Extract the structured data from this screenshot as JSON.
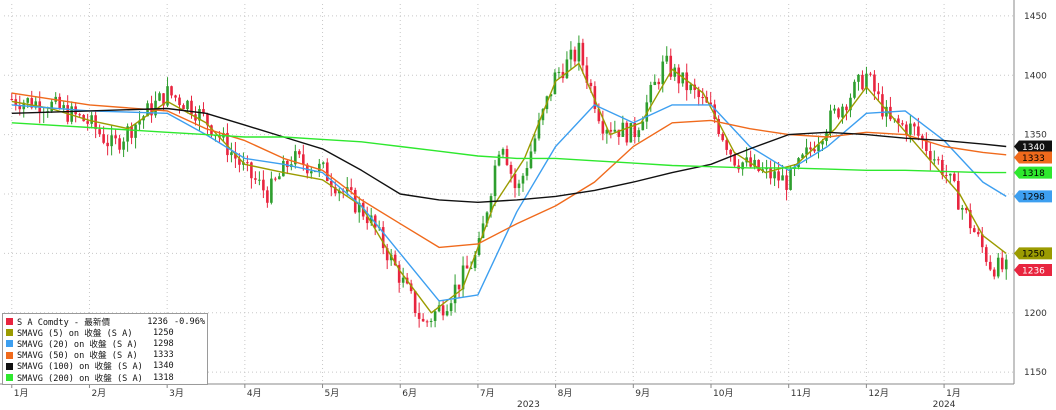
{
  "chart_data": {
    "type": "candlestick+line",
    "title": "",
    "xlabel": "",
    "ylabel": "",
    "ylim": [
      1140,
      1460
    ],
    "y_ticks": [
      1150,
      1200,
      1250,
      1300,
      1350,
      1400,
      1450
    ],
    "x_tick_labels": [
      "1月",
      "2月",
      "3月",
      "4月",
      "5月",
      "6月",
      "7月",
      "8月",
      "9月",
      "10月",
      "11月",
      "12月",
      "1月"
    ],
    "x_year_labels": [
      "2023",
      "2024"
    ],
    "grid": "vertical dotted, horizontal dotted",
    "legend_position": "bottom-left",
    "candles_up_color": "#2e9e2e",
    "candles_down_color": "#e8253f",
    "series": [
      {
        "name": "S A Comdty - 最新價",
        "last": "1236",
        "change": "-0.96%",
        "color": "#e8253f",
        "points": [
          [
            0,
            1380
          ],
          [
            0.5,
            1375
          ],
          [
            1,
            1360
          ],
          [
            1.3,
            1340
          ],
          [
            1.6,
            1360
          ],
          [
            2,
            1385
          ],
          [
            2.3,
            1375
          ],
          [
            2.6,
            1355
          ],
          [
            3,
            1320
          ],
          [
            3.3,
            1300
          ],
          [
            3.6,
            1330
          ],
          [
            4,
            1320
          ],
          [
            4.3,
            1300
          ],
          [
            4.6,
            1280
          ],
          [
            5,
            1230
          ],
          [
            5.3,
            1190
          ],
          [
            5.6,
            1210
          ],
          [
            6,
            1250
          ],
          [
            6.3,
            1350
          ],
          [
            6.5,
            1300
          ],
          [
            6.8,
            1360
          ],
          [
            7,
            1400
          ],
          [
            7.3,
            1420
          ],
          [
            7.6,
            1360
          ],
          [
            8,
            1350
          ],
          [
            8.4,
            1410
          ],
          [
            8.7,
            1390
          ],
          [
            9,
            1370
          ],
          [
            9.3,
            1330
          ],
          [
            9.6,
            1320
          ],
          [
            10,
            1310
          ],
          [
            10.5,
            1360
          ],
          [
            11,
            1400
          ],
          [
            11.3,
            1360
          ],
          [
            11.6,
            1355
          ],
          [
            12,
            1320
          ],
          [
            12.3,
            1280
          ],
          [
            12.6,
            1240
          ],
          [
            12.8,
            1236
          ]
        ]
      },
      {
        "name": "SMAVG (5)  on 收盤 (S A)",
        "last": "1250",
        "color": "#9b9b00",
        "points": [
          [
            0,
            1378
          ],
          [
            0.5,
            1372
          ],
          [
            1,
            1362
          ],
          [
            1.5,
            1355
          ],
          [
            2,
            1378
          ],
          [
            2.5,
            1360
          ],
          [
            3,
            1325
          ],
          [
            3.5,
            1318
          ],
          [
            4,
            1312
          ],
          [
            4.5,
            1290
          ],
          [
            5,
            1235
          ],
          [
            5.4,
            1200
          ],
          [
            5.8,
            1220
          ],
          [
            6.2,
            1290
          ],
          [
            6.6,
            1330
          ],
          [
            7,
            1395
          ],
          [
            7.3,
            1410
          ],
          [
            7.7,
            1350
          ],
          [
            8.1,
            1360
          ],
          [
            8.5,
            1405
          ],
          [
            8.9,
            1385
          ],
          [
            9.3,
            1335
          ],
          [
            9.7,
            1318
          ],
          [
            10.1,
            1325
          ],
          [
            10.6,
            1355
          ],
          [
            11,
            1390
          ],
          [
            11.4,
            1360
          ],
          [
            11.8,
            1330
          ],
          [
            12.2,
            1300
          ],
          [
            12.5,
            1265
          ],
          [
            12.8,
            1250
          ]
        ]
      },
      {
        "name": "SMAVG (20) on 收盤 (S A)",
        "last": "1298",
        "color": "#3d9ff0",
        "points": [
          [
            0,
            1375
          ],
          [
            1,
            1370
          ],
          [
            2,
            1368
          ],
          [
            2.5,
            1350
          ],
          [
            3,
            1330
          ],
          [
            3.5,
            1325
          ],
          [
            4,
            1318
          ],
          [
            4.5,
            1290
          ],
          [
            5,
            1250
          ],
          [
            5.5,
            1210
          ],
          [
            6,
            1215
          ],
          [
            6.5,
            1285
          ],
          [
            7,
            1340
          ],
          [
            7.5,
            1375
          ],
          [
            8,
            1360
          ],
          [
            8.5,
            1375
          ],
          [
            9,
            1375
          ],
          [
            9.5,
            1340
          ],
          [
            10,
            1320
          ],
          [
            10.5,
            1340
          ],
          [
            11,
            1368
          ],
          [
            11.5,
            1370
          ],
          [
            12,
            1345
          ],
          [
            12.5,
            1310
          ],
          [
            12.8,
            1298
          ]
        ]
      },
      {
        "name": "SMAVG (50) on 收盤 (S A)",
        "last": "1333",
        "color": "#f06a1c",
        "points": [
          [
            0,
            1385
          ],
          [
            1,
            1375
          ],
          [
            2,
            1370
          ],
          [
            2.5,
            1355
          ],
          [
            3,
            1345
          ],
          [
            3.5,
            1330
          ],
          [
            4,
            1320
          ],
          [
            4.5,
            1295
          ],
          [
            5,
            1275
          ],
          [
            5.5,
            1255
          ],
          [
            6,
            1258
          ],
          [
            6.5,
            1275
          ],
          [
            7,
            1290
          ],
          [
            7.5,
            1310
          ],
          [
            8,
            1340
          ],
          [
            8.5,
            1360
          ],
          [
            9,
            1362
          ],
          [
            9.5,
            1355
          ],
          [
            10,
            1350
          ],
          [
            10.5,
            1348
          ],
          [
            11,
            1352
          ],
          [
            11.5,
            1350
          ],
          [
            12,
            1340
          ],
          [
            12.5,
            1335
          ],
          [
            12.8,
            1333
          ]
        ]
      },
      {
        "name": "SMAVG (100) on 收盤 (S A)",
        "last": "1340",
        "color": "#111111",
        "points": [
          [
            0,
            1368
          ],
          [
            1,
            1370
          ],
          [
            2,
            1372
          ],
          [
            2.5,
            1368
          ],
          [
            3,
            1358
          ],
          [
            3.5,
            1348
          ],
          [
            4,
            1338
          ],
          [
            4.5,
            1320
          ],
          [
            5,
            1300
          ],
          [
            5.5,
            1295
          ],
          [
            6,
            1293
          ],
          [
            6.5,
            1295
          ],
          [
            7,
            1298
          ],
          [
            7.5,
            1303
          ],
          [
            8,
            1310
          ],
          [
            8.5,
            1318
          ],
          [
            9,
            1325
          ],
          [
            9.5,
            1338
          ],
          [
            10,
            1350
          ],
          [
            10.5,
            1352
          ],
          [
            11,
            1350
          ],
          [
            11.5,
            1347
          ],
          [
            12,
            1345
          ],
          [
            12.5,
            1342
          ],
          [
            12.8,
            1340
          ]
        ]
      },
      {
        "name": "SMAVG (200) on 收盤 (S A)",
        "last": "1318",
        "color": "#2ee82e",
        "points": [
          [
            0,
            1360
          ],
          [
            1,
            1356
          ],
          [
            2,
            1352
          ],
          [
            2.5,
            1350
          ],
          [
            3,
            1348
          ],
          [
            3.5,
            1348
          ],
          [
            4,
            1346
          ],
          [
            4.5,
            1344
          ],
          [
            5,
            1340
          ],
          [
            5.5,
            1336
          ],
          [
            6,
            1332
          ],
          [
            6.5,
            1330
          ],
          [
            7,
            1330
          ],
          [
            7.5,
            1328
          ],
          [
            8,
            1326
          ],
          [
            8.5,
            1324
          ],
          [
            9,
            1323
          ],
          [
            9.5,
            1322
          ],
          [
            10,
            1322
          ],
          [
            10.5,
            1321
          ],
          [
            11,
            1320
          ],
          [
            11.5,
            1320
          ],
          [
            12,
            1319
          ],
          [
            12.5,
            1318
          ],
          [
            12.8,
            1318
          ]
        ]
      }
    ],
    "right_tags": [
      {
        "label": "1340",
        "bg": "#111111",
        "fg": "#ffffff",
        "value": 1340
      },
      {
        "label": "1333",
        "bg": "#f06a1c",
        "fg": "#000000",
        "value": 1333
      },
      {
        "label": "1318",
        "bg": "#2ee82e",
        "fg": "#000000",
        "value": 1318
      },
      {
        "label": "1298",
        "bg": "#3d9ff0",
        "fg": "#000000",
        "value": 1298
      },
      {
        "label": "1250",
        "bg": "#9b9b00",
        "fg": "#000000",
        "value": 1250
      },
      {
        "label": "1236",
        "bg": "#e8253f",
        "fg": "#ffffff",
        "value": 1236
      }
    ]
  },
  "legend": {
    "rows": [
      {
        "label": "S A Comdty - 最新價",
        "value": "1236",
        "change": "-0.96%",
        "color": "#e8253f"
      },
      {
        "label": "SMAVG (5)  on 收盤 (S A)",
        "value": "1250",
        "change": "",
        "color": "#9b9b00"
      },
      {
        "label": "SMAVG (20) on 收盤 (S A)",
        "value": "1298",
        "change": "",
        "color": "#3d9ff0"
      },
      {
        "label": "SMAVG (50) on 收盤 (S A)",
        "value": "1333",
        "change": "",
        "color": "#f06a1c"
      },
      {
        "label": "SMAVG (100) on 收盤 (S A)",
        "value": "1340",
        "change": "",
        "color": "#111111"
      },
      {
        "label": "SMAVG (200) on 收盤 (S A)",
        "value": "1318",
        "change": "",
        "color": "#2ee82e"
      }
    ]
  }
}
